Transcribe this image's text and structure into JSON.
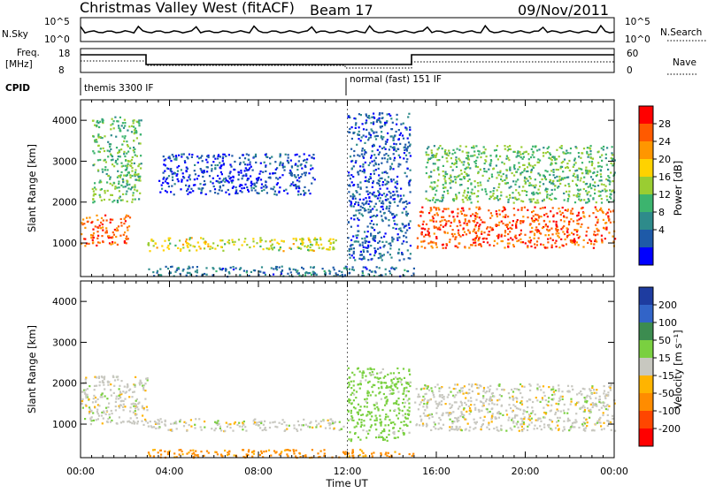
{
  "header": {
    "station": "Christmas Valley West (fitACF)",
    "beam": "Beam 17",
    "date": "09/Nov/2011"
  },
  "strip_panels": {
    "nsky": {
      "label": "N.Sky",
      "ticks": [
        "10^5",
        "10^0"
      ]
    },
    "nsearch": {
      "label": "N.Search",
      "ticks": [
        "10^5",
        "10^0"
      ]
    },
    "freq": {
      "label_line1": "Freq.",
      "label_line2": "[MHz]",
      "ticks": [
        "18",
        "8"
      ]
    },
    "nave": {
      "label": "Nave",
      "ticks": [
        "60",
        "0"
      ]
    },
    "cpid": {
      "label": "CPID",
      "segments": [
        {
          "name": "themis 3300 IF",
          "start_hour": 0
        },
        {
          "name": "normal (fast) 151 IF",
          "start_hour": 12
        }
      ]
    }
  },
  "chart_data": [
    {
      "type": "heatmap",
      "name": "Power",
      "ylabel": "Slant Range [km]",
      "ylim": [
        180,
        4500
      ],
      "yticks": [
        1000,
        2000,
        3000,
        4000
      ],
      "xlim": [
        0,
        24
      ],
      "colorbar": {
        "label": "Power [dB]",
        "ticks": [
          "28",
          "24",
          "20",
          "16",
          "12",
          "8",
          "4"
        ],
        "colors": [
          "#ff0000",
          "#ff5a00",
          "#ff9600",
          "#ffd200",
          "#9acd32",
          "#3cb46e",
          "#2e8b8b",
          "#1e5aa8",
          "#0000ff"
        ]
      },
      "regions": [
        {
          "hours": [
            0,
            2.2
          ],
          "range_km": [
            950,
            1700
          ],
          "value": 26
        },
        {
          "hours": [
            0.5,
            2.7
          ],
          "range_km": [
            2000,
            4100
          ],
          "value": 14
        },
        {
          "hours": [
            3,
            11.5
          ],
          "range_km": [
            820,
            1150
          ],
          "value": 18
        },
        {
          "hours": [
            3,
            15
          ],
          "range_km": [
            200,
            450
          ],
          "value": 8
        },
        {
          "hours": [
            3.5,
            10.5
          ],
          "range_km": [
            2200,
            3200
          ],
          "value": 5
        },
        {
          "hours": [
            12,
            14.8
          ],
          "range_km": [
            600,
            4200
          ],
          "value": 6
        },
        {
          "hours": [
            15.1,
            24
          ],
          "range_km": [
            900,
            1900
          ],
          "value": 27
        },
        {
          "hours": [
            15.5,
            24
          ],
          "range_km": [
            2000,
            3400
          ],
          "value": 14
        }
      ]
    },
    {
      "type": "heatmap",
      "name": "Velocity",
      "ylabel": "Slant Range [km]",
      "ylim": [
        180,
        4500
      ],
      "yticks": [
        1000,
        2000,
        3000,
        4000
      ],
      "xlim": [
        0,
        24
      ],
      "colorbar": {
        "label": "Velocity [m s⁻¹]",
        "ticks": [
          "200",
          "100",
          "50",
          "15",
          "-15",
          "-50",
          "-100",
          "-200"
        ],
        "colors": [
          "#1e3ca0",
          "#3264c8",
          "#3c8c50",
          "#7ad040",
          "#c8c8c0",
          "#ffb400",
          "#ff8c00",
          "#ff4600",
          "#ff0000"
        ]
      },
      "regions": [
        {
          "hours": [
            0,
            3
          ],
          "range_km": [
            1000,
            2200
          ],
          "value": 0
        },
        {
          "hours": [
            3,
            11.8
          ],
          "range_km": [
            850,
            1150
          ],
          "value": 0
        },
        {
          "hours": [
            3,
            15
          ],
          "range_km": [
            200,
            400
          ],
          "value": -60
        },
        {
          "hours": [
            12,
            14.8
          ],
          "range_km": [
            600,
            2400
          ],
          "value": 30
        },
        {
          "hours": [
            15,
            24
          ],
          "range_km": [
            850,
            2000
          ],
          "value": 0
        }
      ]
    }
  ],
  "time_axis": {
    "label": "Time UT",
    "ticks": [
      "00:00",
      "04:00",
      "08:00",
      "12:00",
      "16:00",
      "20:00",
      "00:00"
    ]
  }
}
